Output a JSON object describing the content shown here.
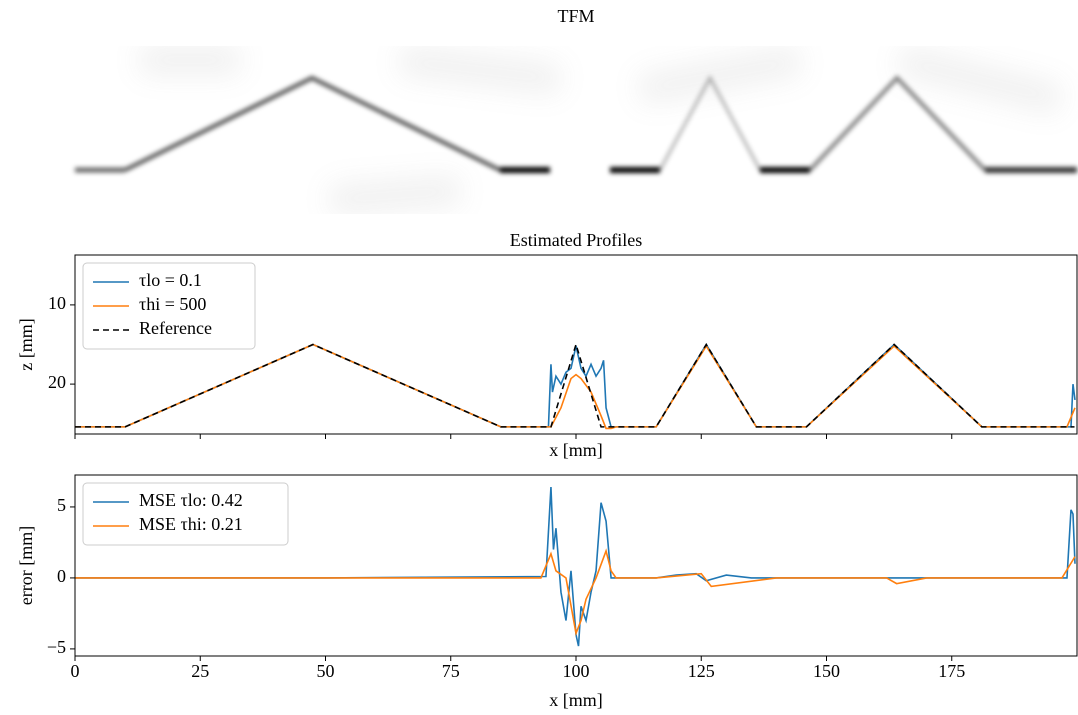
{
  "chart_data": [
    {
      "type": "image",
      "title": "TFM"
    },
    {
      "type": "line",
      "title": "Estimated Profiles",
      "xlabel": "x [mm]",
      "ylabel": "z [mm]",
      "xlim": [
        0,
        200
      ],
      "ylim": [
        26.3,
        3.7
      ],
      "xticks": [
        0,
        25,
        50,
        75,
        100,
        125,
        150,
        175
      ],
      "yticks": [
        10,
        20
      ],
      "show_xtick_labels": false,
      "legend": "upper left",
      "series": [
        {
          "name": "τlo = 0.1",
          "color": "#1f77b4",
          "dash": false,
          "x": [
            0,
            10,
            47.5,
            85,
            94.5,
            95,
            95.3,
            96,
            97,
            98,
            99,
            100,
            101,
            102,
            103,
            104,
            105,
            105.5,
            106,
            107,
            116,
            126,
            136,
            146,
            163.5,
            181,
            198.8,
            199.2,
            199.6
          ],
          "values": [
            25.4,
            25.4,
            15,
            25.4,
            25.4,
            17.5,
            21,
            19,
            20,
            18.5,
            18,
            15.2,
            18,
            19,
            17.5,
            19,
            18,
            17,
            23,
            25.4,
            25.4,
            15,
            25.4,
            25.4,
            15,
            25.4,
            25.4,
            20,
            22
          ]
        },
        {
          "name": "τhi = 500",
          "color": "#ff7f0e",
          "dash": false,
          "x": [
            0,
            10,
            47.5,
            85,
            95,
            97,
            99,
            100,
            101,
            103,
            105,
            106,
            107,
            108,
            116,
            126,
            136,
            146,
            163.5,
            181,
            198,
            199.6
          ],
          "values": [
            25.4,
            25.4,
            15,
            25.4,
            25.4,
            23,
            19.3,
            18.8,
            19.3,
            21,
            24,
            25.6,
            25.6,
            25.4,
            25.4,
            15.2,
            25.4,
            25.4,
            15.2,
            25.4,
            25.4,
            23
          ]
        },
        {
          "name": "Reference",
          "color": "#000000",
          "dash": true,
          "x": [
            0,
            10,
            47.5,
            85,
            95,
            100,
            105,
            116,
            126,
            136,
            146,
            163.5,
            181,
            199.5
          ],
          "values": [
            25.4,
            25.4,
            15,
            25.4,
            25.4,
            15,
            25.4,
            25.4,
            15,
            25.4,
            25.4,
            15,
            25.4,
            25.4
          ]
        }
      ]
    },
    {
      "type": "line",
      "xlabel": "x [mm]",
      "ylabel": "error [mm]",
      "xlim": [
        0,
        200
      ],
      "ylim": [
        -5.5,
        7.25
      ],
      "xticks": [
        0,
        25,
        50,
        75,
        100,
        125,
        150,
        175
      ],
      "yticks": [
        {
          "value": -5,
          "label": "−5"
        },
        0,
        5
      ],
      "show_xtick_labels": true,
      "legend": "upper left",
      "series": [
        {
          "name": "MSE τlo: 0.42",
          "color": "#1f77b4",
          "dash": false,
          "x": [
            0,
            50,
            94,
            95,
            95.5,
            96,
            97,
            98,
            99,
            100,
            100.5,
            101,
            102,
            103,
            104,
            105,
            106,
            107,
            116,
            120,
            124,
            126,
            130,
            135,
            140,
            150,
            170,
            198,
            198.8,
            199.2,
            199.6
          ],
          "values": [
            0,
            0,
            0.1,
            6.4,
            2,
            3.5,
            -1,
            -3,
            0.5,
            -4,
            -4.8,
            -2,
            -3,
            -1,
            0.5,
            5.3,
            4,
            0,
            0,
            0.2,
            0.3,
            -0.2,
            0.2,
            0,
            0,
            0,
            0,
            0,
            4.8,
            4.5,
            1
          ]
        },
        {
          "name": "MSE τhi: 0.21",
          "color": "#ff7f0e",
          "dash": false,
          "x": [
            0,
            50,
            93,
            95,
            96,
            98,
            100,
            101,
            102,
            104,
            106,
            107,
            108,
            116,
            125,
            127,
            140,
            162,
            164,
            170,
            197,
            199.6
          ],
          "values": [
            0,
            0,
            0,
            1.7,
            0.5,
            0,
            -3.9,
            -3,
            -1.5,
            0,
            1.9,
            0.5,
            0,
            0,
            0.3,
            -0.6,
            0,
            0,
            -0.4,
            0,
            0,
            1.5
          ]
        }
      ]
    }
  ]
}
